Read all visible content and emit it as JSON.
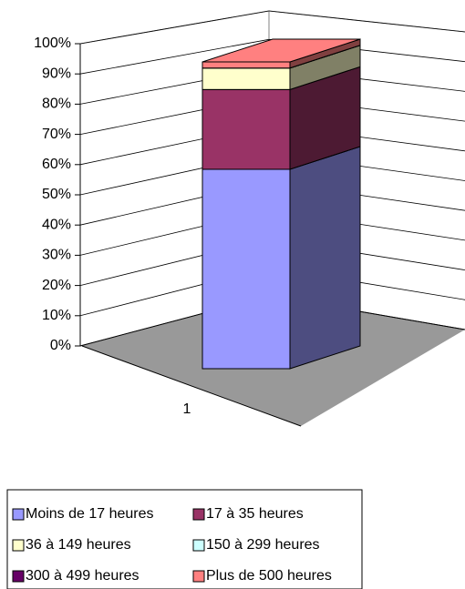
{
  "chart_data": {
    "type": "bar3d_stacked",
    "categories": [
      "1"
    ],
    "series": [
      {
        "name": "Moins de 17 heures",
        "color": "#9999ff",
        "values": [
          65
        ]
      },
      {
        "name": "17 à 35 heures",
        "color": "#993366",
        "values": [
          26
        ]
      },
      {
        "name": "36 à 149 heures",
        "color": "#ffffcc",
        "values": [
          7
        ]
      },
      {
        "name": "150 à 299 heures",
        "color": "#ccffff",
        "values": [
          0
        ]
      },
      {
        "name": "300 à 499 heures",
        "color": "#660066",
        "values": [
          0
        ]
      },
      {
        "name": "Plus de 500 heures",
        "color": "#ff8080",
        "values": [
          2
        ]
      }
    ],
    "ylim": [
      0,
      100
    ],
    "yticks": [
      {
        "value": 0,
        "label": "0%"
      },
      {
        "value": 10,
        "label": "10%"
      },
      {
        "value": 20,
        "label": "20%"
      },
      {
        "value": 30,
        "label": "30%"
      },
      {
        "value": 40,
        "label": "40%"
      },
      {
        "value": 50,
        "label": "50%"
      },
      {
        "value": 60,
        "label": "60%"
      },
      {
        "value": 70,
        "label": "70%"
      },
      {
        "value": 80,
        "label": "80%"
      },
      {
        "value": 90,
        "label": "90%"
      },
      {
        "value": 100,
        "label": "100%"
      }
    ],
    "grid": true
  }
}
